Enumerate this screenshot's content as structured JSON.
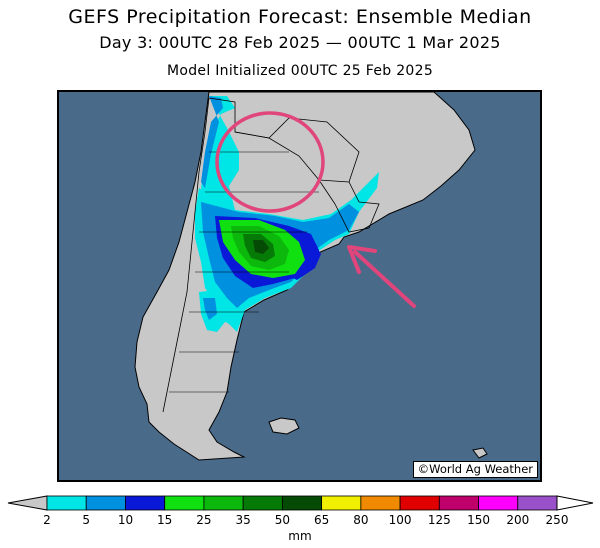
{
  "header": {
    "title": "GEFS Precipitation Forecast: Ensemble Median",
    "valid_period": "Day 3: 00UTC 28 Feb 2025 — 00UTC 1 Mar 2025",
    "init": "Model Initialized 00UTC 25 Feb 2025"
  },
  "map": {
    "credit": "©World Ag Weather",
    "ocean_color": "#4a6a8a",
    "land_color": "#c8c8c8",
    "annotations": [
      {
        "type": "circle",
        "color": "#e0457b",
        "marks": "northern Argentina / Paraguay"
      },
      {
        "type": "arrow",
        "color": "#e0457b",
        "points_to": "Buenos Aires / Rio de la Plata"
      }
    ]
  },
  "legend": {
    "units": "mm",
    "bins": [
      {
        "label": "2",
        "color": "#00e5e5"
      },
      {
        "label": "5",
        "color": "#0090e0"
      },
      {
        "label": "10",
        "color": "#0a18d8"
      },
      {
        "label": "15",
        "color": "#10e010"
      },
      {
        "label": "25",
        "color": "#0cb80c"
      },
      {
        "label": "35",
        "color": "#067a06"
      },
      {
        "label": "50",
        "color": "#054a05"
      },
      {
        "label": "65",
        "color": "#f0f000"
      },
      {
        "label": "80",
        "color": "#f08a00"
      },
      {
        "label": "100",
        "color": "#e00000"
      },
      {
        "label": "125",
        "color": "#c0006a"
      },
      {
        "label": "150",
        "color": "#ff00ff"
      },
      {
        "label": "200",
        "color": "#9a50c8"
      },
      {
        "label": "250",
        "color": "#ffffff"
      }
    ]
  }
}
